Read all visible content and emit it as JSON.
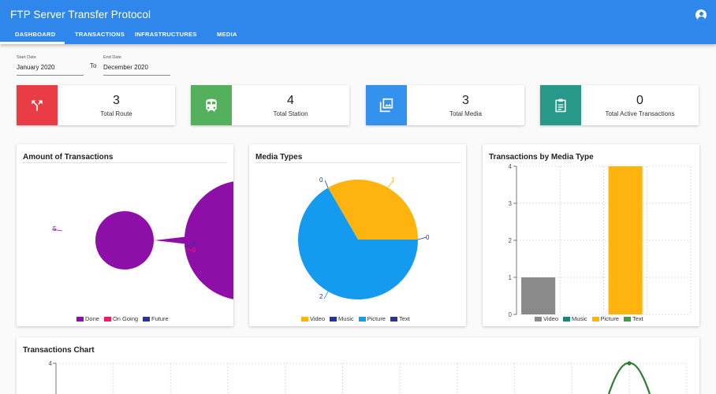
{
  "header": {
    "title": "FTP Server Transfer Protocol",
    "tabs": [
      "DASHBOARD",
      "TRANSACTIONS",
      "INFRASTRUCTURES",
      "MEDIA"
    ],
    "account_icon": "account-circle-icon",
    "colors": {
      "appbar": "#2f86eb"
    }
  },
  "filters": {
    "start_label": "Start Date",
    "start_value": "January 2020",
    "to_label": "To",
    "end_label": "End Date",
    "end_value": "December 2020"
  },
  "stats": [
    {
      "value": "3",
      "label": "Total Route",
      "icon": "route-icon",
      "color": "#ea3c45"
    },
    {
      "value": "4",
      "label": "Total Station",
      "icon": "train-icon",
      "color": "#55b05d"
    },
    {
      "value": "3",
      "label": "Total Media",
      "icon": "photo-library-icon",
      "color": "#3592ec"
    },
    {
      "value": "0",
      "label": "Total Active Transactions",
      "icon": "clipboard-icon",
      "color": "#26998a"
    }
  ],
  "panels": {
    "amount_title": "Amount of Transactions",
    "media_title": "Media Types",
    "bymedia_title": "Transactions by Media Type",
    "chart_title": "Transactions Chart"
  },
  "chart_data": [
    {
      "type": "pie",
      "variant": "doughnut",
      "title": "Amount of Transactions",
      "categories": [
        "Done",
        "On Going",
        "Future"
      ],
      "values": [
        5,
        0,
        0
      ],
      "colors": [
        "#8e0ea8",
        "#e91e63",
        "#283593"
      ],
      "legend": "bottom"
    },
    {
      "type": "pie",
      "title": "Media Types",
      "categories": [
        "Video",
        "Music",
        "Picture",
        "Text"
      ],
      "values": [
        1,
        0,
        2,
        0
      ],
      "colors": [
        "#ffb30f",
        "#283593",
        "#149aee",
        "#283593"
      ],
      "legend": "bottom"
    },
    {
      "type": "bar",
      "title": "Transactions by Media Type",
      "categories": [
        "Video",
        "Music",
        "Picture",
        "Text"
      ],
      "values": [
        1,
        0,
        4,
        0
      ],
      "colors": [
        "#8a8a8a",
        "#16857a",
        "#ffb30f",
        "#3f9e46"
      ],
      "ylim": [
        0,
        4
      ],
      "yticks": [
        0,
        1,
        2,
        3,
        4
      ],
      "grid": true,
      "legend": "bottom"
    },
    {
      "type": "line",
      "title": "Transactions Chart",
      "yticks_visible": [
        4
      ],
      "ylim": [
        0,
        4
      ],
      "peak_value": 4,
      "color": "#2e7d32",
      "grid": true
    }
  ]
}
